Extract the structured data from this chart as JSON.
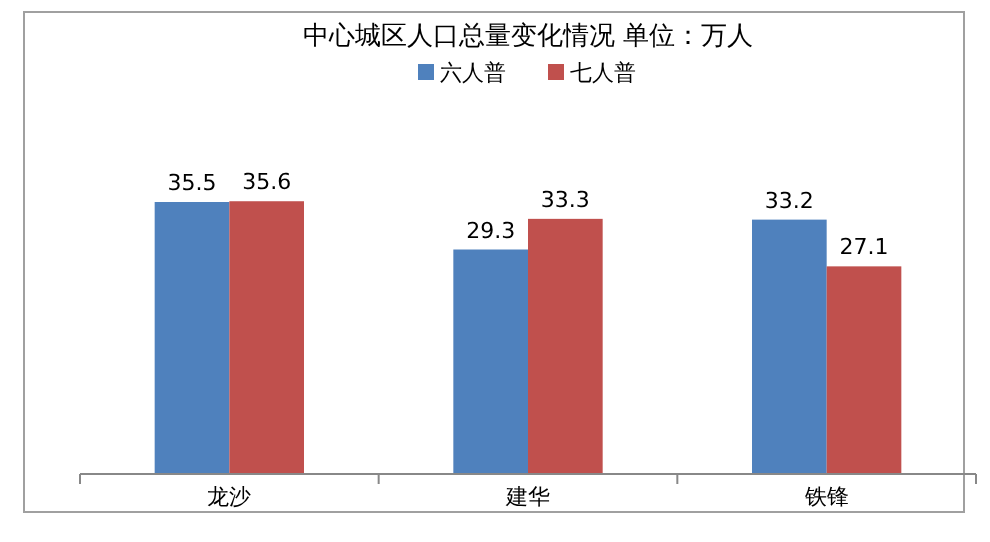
{
  "chart_data": {
    "type": "bar",
    "title": "中心城区人口总量变化情况  单位：万人",
    "categories": [
      "龙沙",
      "建华",
      "铁锋"
    ],
    "series": [
      {
        "name": "六人普",
        "color": "#4f81bd",
        "values": [
          35.5,
          29.3,
          33.2
        ]
      },
      {
        "name": "七人普",
        "color": "#c0504d",
        "values": [
          35.6,
          33.3,
          27.1
        ]
      }
    ],
    "data_labels": true,
    "legend": "top",
    "grid": false
  }
}
